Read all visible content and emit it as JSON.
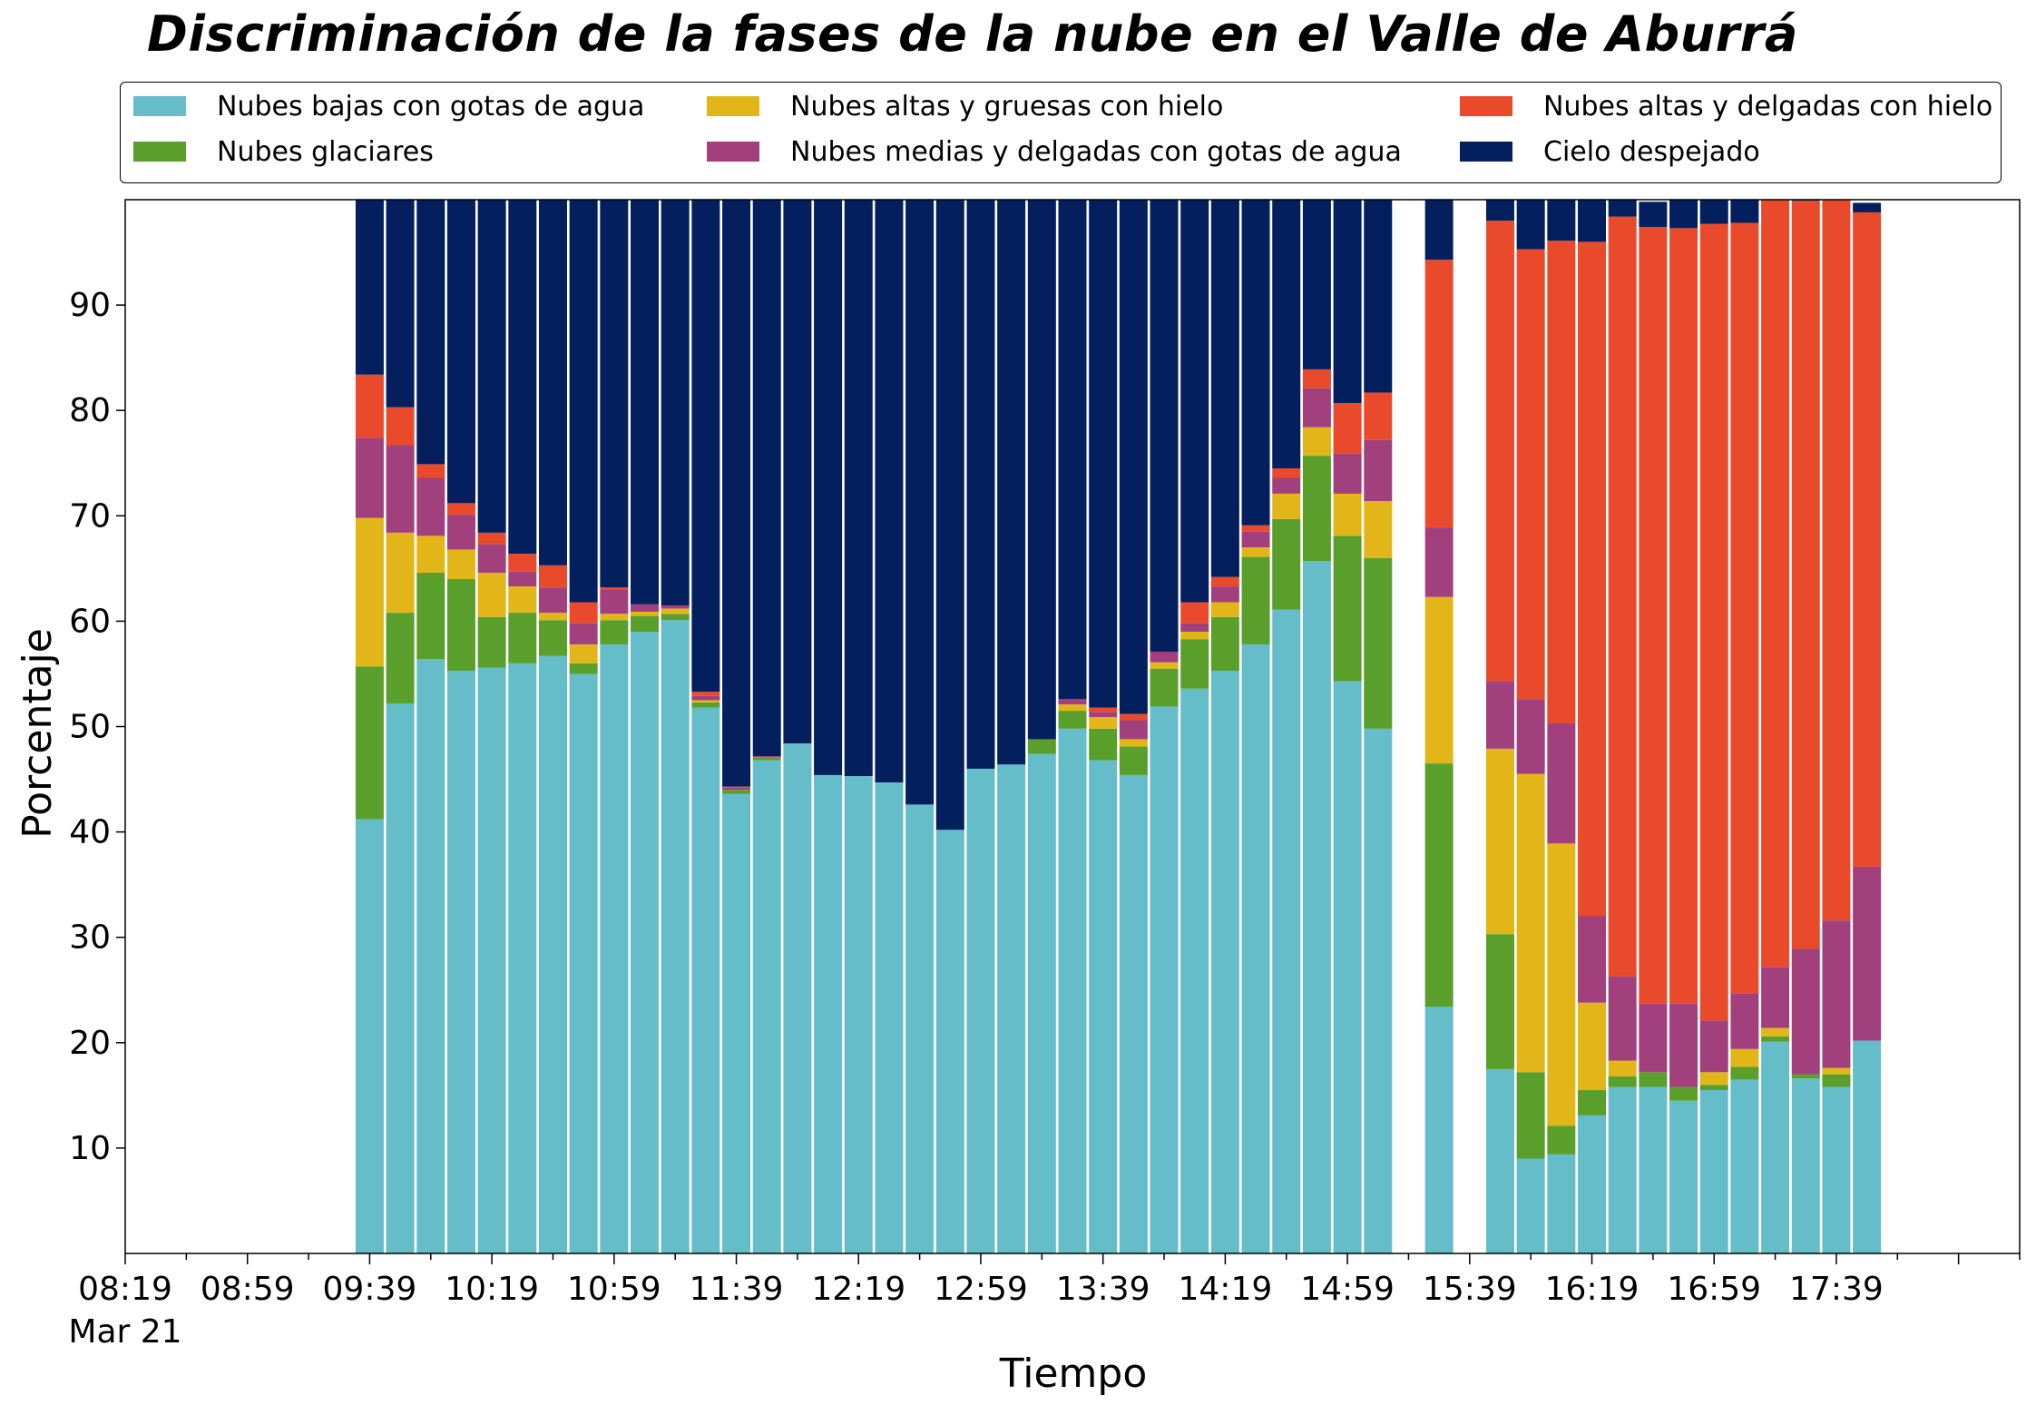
{
  "chart_data": {
    "type": "bar",
    "stacked": true,
    "title": "Discriminación de la fases de la nube en el Valle de Aburrá",
    "xlabel": "Tiempo",
    "ylabel": "Porcentaje",
    "ylim": [
      0,
      100
    ],
    "yticks": [
      10,
      20,
      30,
      40,
      50,
      60,
      70,
      80,
      90
    ],
    "xtick_labels": [
      "08:19",
      "08:59",
      "09:39",
      "10:19",
      "10:59",
      "11:39",
      "12:19",
      "12:59",
      "13:39",
      "14:19",
      "14:59",
      "15:39",
      "16:19",
      "16:59",
      "17:39"
    ],
    "xtick_sublabel": "Mar 21",
    "time_start": "08:19",
    "bin_minutes": 5,
    "grid": false,
    "legend_position": "top",
    "x": [
      "09:39",
      "09:44",
      "09:49",
      "09:54",
      "09:59",
      "10:04",
      "10:09",
      "10:14",
      "10:19",
      "10:24",
      "10:29",
      "10:34",
      "10:39",
      "10:44",
      "10:49",
      "10:54",
      "10:59",
      "11:04",
      "11:09",
      "11:14",
      "11:19",
      "11:24",
      "11:29",
      "11:34",
      "11:39",
      "11:44",
      "11:49",
      "11:54",
      "11:59",
      "12:04",
      "12:09",
      "12:14",
      "12:19",
      "12:24",
      "12:29",
      "12:34",
      "12:39",
      "12:44",
      "12:49",
      "12:54",
      "12:59",
      "13:04",
      "13:09",
      "13:14",
      "13:19",
      "13:24",
      "13:29",
      "13:34",
      "13:39",
      "13:44",
      "13:49",
      "13:54",
      "13:59",
      "14:04",
      "14:09",
      "14:14",
      "14:19",
      "14:24",
      "14:29",
      "14:34",
      "14:39",
      "14:44",
      "14:49",
      "14:54",
      "14:59",
      "15:04",
      "15:09",
      "15:14",
      "15:19",
      "15:24",
      "15:29",
      "15:34",
      "15:39",
      "15:44",
      "15:49",
      "15:54",
      "15:59",
      "16:04",
      "16:09",
      "16:14",
      "16:19",
      "16:24",
      "16:29",
      "16:34",
      "16:39",
      "16:44",
      "16:49",
      "16:54",
      "16:59",
      "17:04",
      "17:09",
      "17:14",
      "17:19",
      "17:24",
      "17:29",
      "17:34",
      "17:39",
      "17:44",
      "17:49",
      "17:54",
      "17:59",
      "18:04",
      "18:09",
      "18:14",
      "18:19",
      "18:24",
      "18:29",
      "18:34",
      "18:39"
    ],
    "categories": [
      "09:39",
      "09:49",
      "09:59",
      "10:09",
      "10:19",
      "10:29",
      "10:39",
      "10:49",
      "10:59",
      "11:09",
      "11:19",
      "11:29",
      "11:39",
      "11:49",
      "11:59",
      "12:09",
      "12:19",
      "12:29",
      "12:39",
      "12:49",
      "12:59",
      "13:09",
      "13:19",
      "13:29",
      "13:39",
      "13:49",
      "13:59",
      "14:09",
      "14:19",
      "14:29",
      "14:39",
      "14:49",
      "14:59",
      "15:09",
      "15:19",
      "15:29",
      "15:39",
      "15:49",
      "15:59",
      "16:09",
      "16:19",
      "16:29",
      "16:39",
      "16:49",
      "16:59",
      "17:09",
      "17:19",
      "17:29",
      "17:39",
      "17:49"
    ],
    "series": [
      {
        "name": "Nubes bajas con gotas de agua",
        "color": "#64bdc9",
        "values": [
          41.2,
          52.2,
          56.4,
          55.3,
          55.6,
          56.0,
          56.7,
          55.0,
          57.8,
          59.0,
          60.1,
          51.8,
          43.6,
          46.8,
          48.4,
          45.4,
          45.3,
          44.7,
          42.6,
          40.2,
          46.0,
          46.4,
          47.4,
          49.8,
          46.8,
          45.4,
          51.9,
          53.6,
          55.3,
          57.8,
          61.1,
          65.7,
          54.3,
          49.8,
          null,
          23.4,
          null,
          17.5,
          9.0,
          9.4,
          13.1,
          15.8,
          15.8,
          14.5,
          15.5,
          16.5,
          20.1,
          16.6,
          15.8,
          20.2
        ]
      },
      {
        "name": "Nubes glaciares",
        "color": "#5a9e2b",
        "values": [
          14.5,
          8.6,
          8.2,
          8.7,
          4.8,
          4.8,
          3.4,
          1.0,
          2.3,
          1.5,
          0.6,
          0.5,
          0.4,
          0.3,
          0,
          0,
          0,
          0,
          0,
          0,
          0,
          0,
          1.4,
          1.7,
          3.0,
          2.7,
          3.6,
          4.7,
          5.1,
          8.3,
          8.6,
          10.0,
          13.8,
          16.2,
          null,
          23.1,
          null,
          12.8,
          8.2,
          2.7,
          2.4,
          1.0,
          1.4,
          1.3,
          0.5,
          1.2,
          0.5,
          0.4,
          1.2,
          0
        ]
      },
      {
        "name": "Nubes altas y gruesas con hielo",
        "color": "#e2b619",
        "values": [
          14.1,
          7.6,
          3.5,
          2.8,
          4.2,
          2.5,
          0.7,
          1.8,
          0.6,
          0.4,
          0.5,
          0.2,
          0,
          0,
          0,
          0,
          0,
          0,
          0,
          0,
          0,
          0,
          0,
          0.6,
          1.1,
          0.7,
          0.6,
          0.7,
          1.4,
          0.9,
          2.4,
          2.7,
          4.0,
          5.4,
          null,
          15.8,
          null,
          17.6,
          28.3,
          26.8,
          8.3,
          1.5,
          0,
          0,
          1.2,
          1.7,
          0.8,
          0,
          0.6,
          0
        ]
      },
      {
        "name": "Nubes medias y delgadas con gotas de agua",
        "color": "#a2407d",
        "values": [
          7.6,
          8.3,
          5.5,
          3.3,
          2.7,
          1.4,
          2.4,
          2.0,
          2.3,
          0.7,
          0.3,
          0.4,
          0.2,
          0.1,
          0,
          0,
          0,
          0,
          0,
          0,
          0,
          0,
          0,
          0.5,
          0.5,
          1.8,
          1.0,
          0.8,
          1.5,
          1.5,
          1.5,
          3.7,
          3.8,
          5.8,
          null,
          6.6,
          null,
          6.4,
          7.1,
          11.4,
          8.2,
          8.0,
          6.5,
          7.9,
          4.9,
          5.3,
          5.8,
          11.9,
          14.0,
          16.5
        ]
      },
      {
        "name": "Nubes altas y delgadas con hielo",
        "color": "#e94a2b",
        "values": [
          6.0,
          3.6,
          1.3,
          1.1,
          1.1,
          1.7,
          2.1,
          2.0,
          0.2,
          0,
          0,
          0.4,
          0.1,
          0,
          0,
          0,
          0,
          0,
          0,
          0,
          0,
          0,
          0,
          0,
          0.4,
          0.6,
          0,
          2.0,
          0.9,
          0.6,
          0.9,
          1.8,
          4.8,
          4.5,
          null,
          25.4,
          null,
          43.7,
          42.7,
          45.8,
          64.0,
          72.1,
          73.7,
          73.6,
          75.6,
          73.1,
          72.8,
          71.0,
          68.9,
          62.1
        ]
      },
      {
        "name": "Cielo despejado",
        "color": "#031f5e",
        "values": [
          16.6,
          19.7,
          25.1,
          28.8,
          31.6,
          33.6,
          34.7,
          38.2,
          36.8,
          38.4,
          38.5,
          46.7,
          55.7,
          52.8,
          51.6,
          54.6,
          54.7,
          55.3,
          57.4,
          59.8,
          54.0,
          53.6,
          51.2,
          47.4,
          48.2,
          48.8,
          42.9,
          38.2,
          35.8,
          30.9,
          25.5,
          16.1,
          19.3,
          18.3,
          null,
          5.7,
          null,
          2.0,
          4.7,
          3.9,
          4.0,
          1.6,
          2.4,
          2.7,
          2.4,
          2.2,
          0,
          0.1,
          0,
          0.9
        ]
      }
    ]
  },
  "legend": {
    "items": [
      {
        "label": "Nubes bajas con gotas de agua",
        "color": "#64bdc9"
      },
      {
        "label": "Nubes glaciares",
        "color": "#5a9e2b"
      },
      {
        "label": "Nubes altas y gruesas con hielo",
        "color": "#e2b619"
      },
      {
        "label": "Nubes medias y delgadas con gotas de agua",
        "color": "#a2407d"
      },
      {
        "label": "Nubes altas y delgadas con hielo",
        "color": "#e94a2b"
      },
      {
        "label": "Cielo despejado",
        "color": "#031f5e"
      }
    ]
  }
}
